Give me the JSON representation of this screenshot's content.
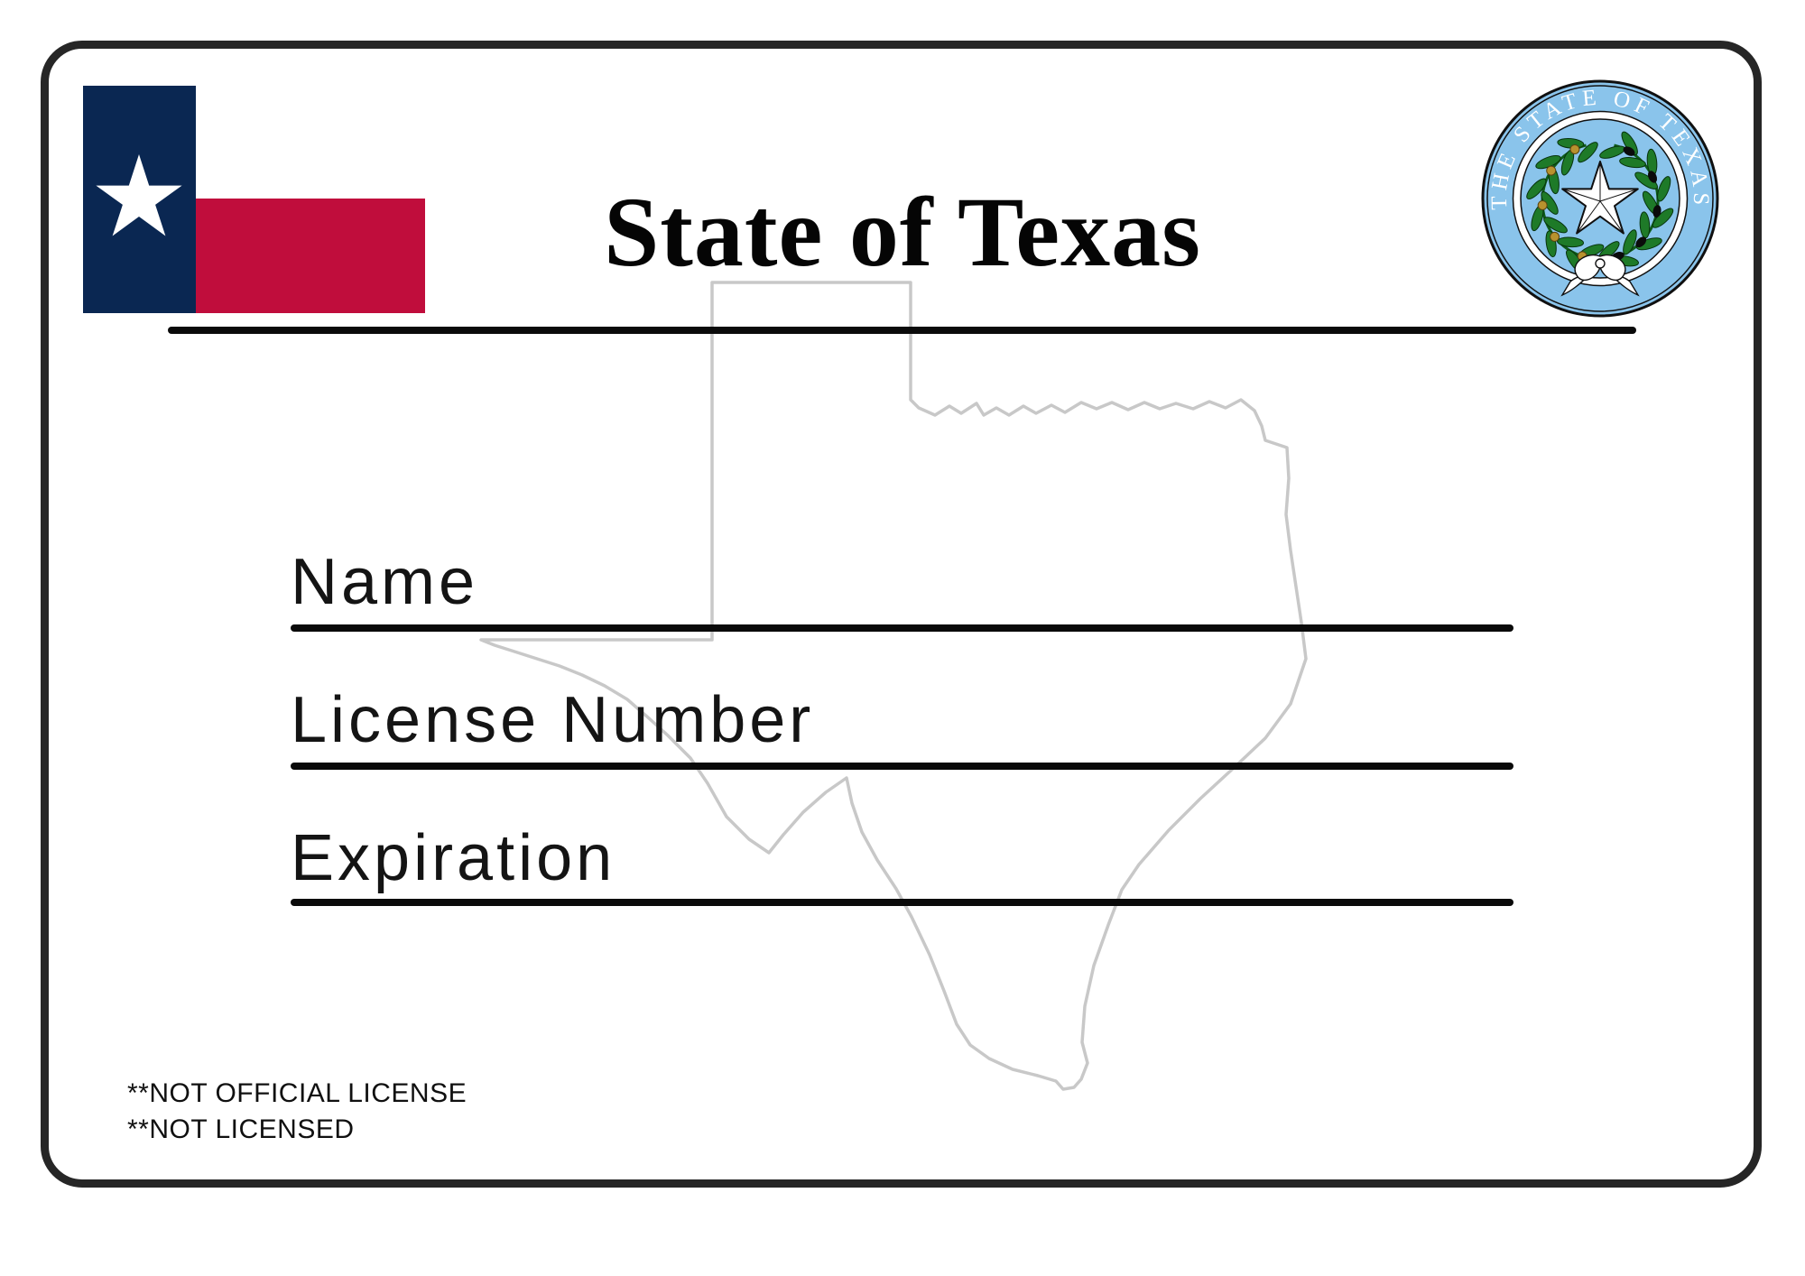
{
  "card": {
    "title": "State of Texas",
    "fields": [
      {
        "label": "Name"
      },
      {
        "label": "License Number"
      },
      {
        "label": "Expiration"
      }
    ],
    "disclaimers": [
      "**NOT OFFICIAL LICENSE",
      "**NOT LICENSED"
    ],
    "flag": {
      "icon": "texas-flag",
      "blue": "#0A2752",
      "red": "#C00D3C",
      "white": "#FFFFFF"
    },
    "seal": {
      "icon": "texas-state-seal",
      "arc_text": "THE STATE OF TEXAS",
      "band_color": "#8AC4EB",
      "wreath_green": "#1E7A28",
      "acorn_gold": "#B8922E"
    },
    "watermark": {
      "icon": "texas-outline",
      "color": "#C8C8C8"
    },
    "accents": {
      "line_color": "#0A0A0A",
      "border_color": "#262626"
    }
  }
}
